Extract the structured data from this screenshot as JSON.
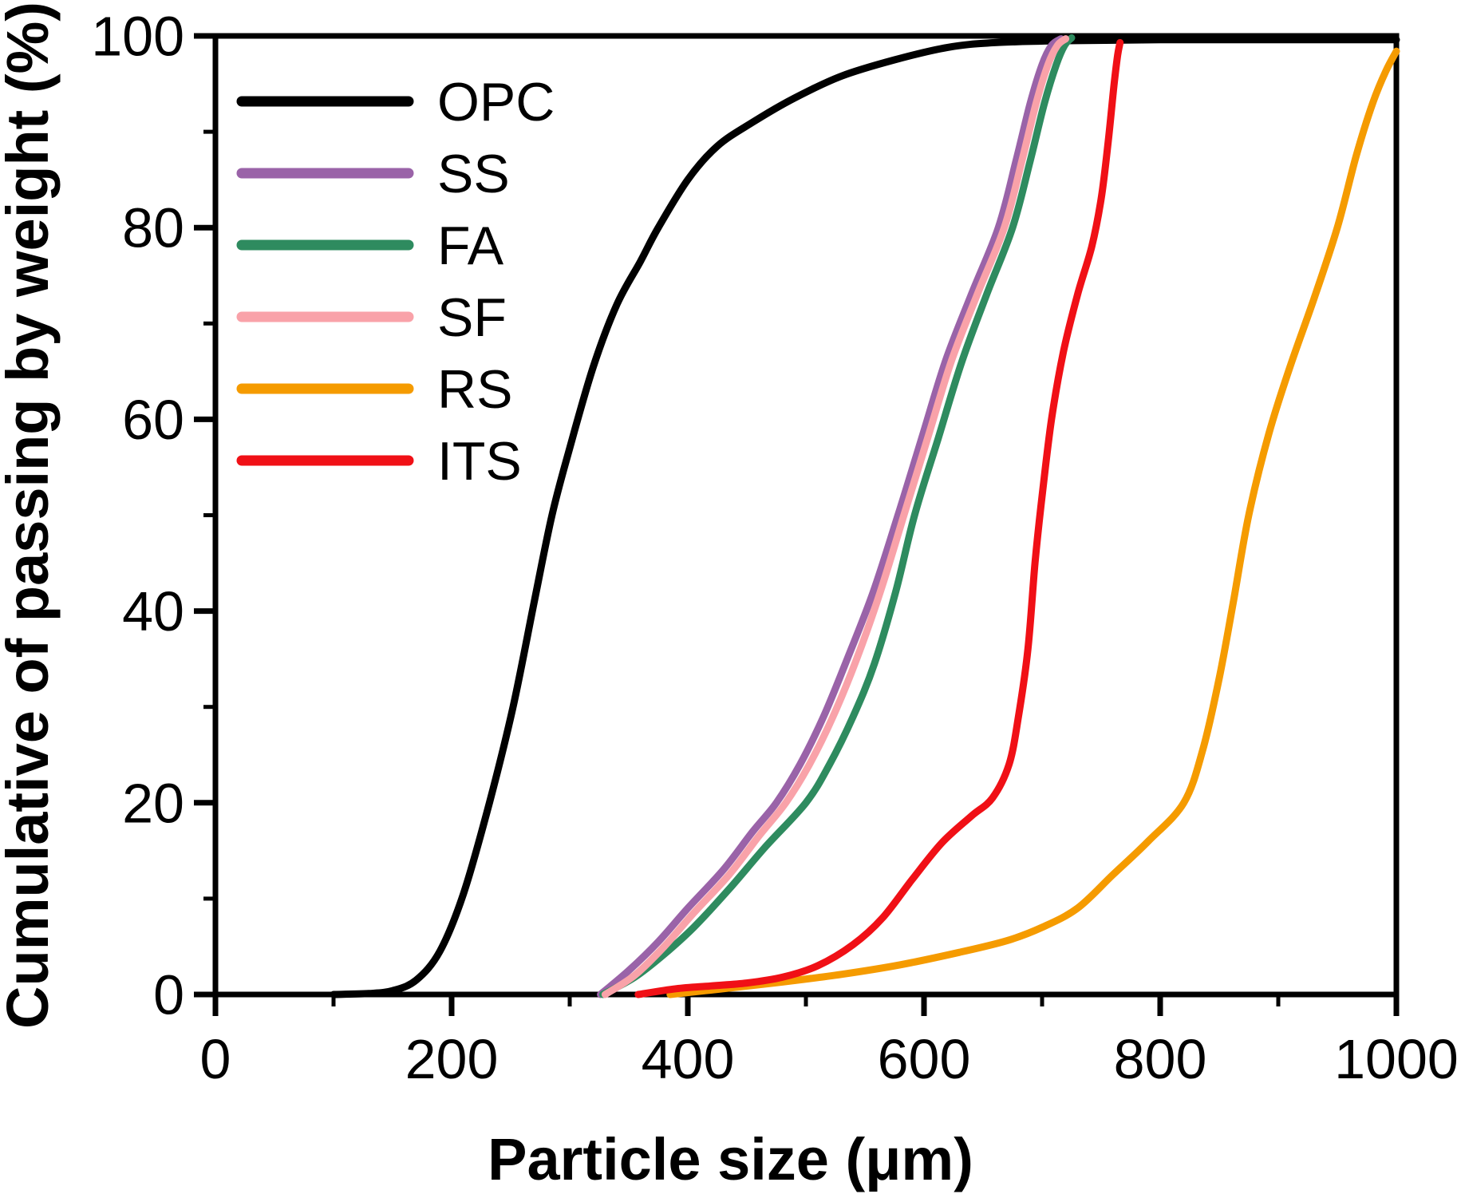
{
  "chart_data": {
    "type": "line",
    "title": "",
    "xlabel": "Particle size (μm)",
    "ylabel": "Cumulative of passing by weight (%)",
    "xlim": [
      0,
      1000
    ],
    "ylim": [
      0,
      100
    ],
    "x_major_ticks": [
      0,
      200,
      400,
      600,
      800,
      1000
    ],
    "x_minor_ticks": [
      100,
      300,
      500,
      700,
      900
    ],
    "y_major_ticks": [
      0,
      20,
      40,
      60,
      80,
      100
    ],
    "y_minor_ticks": [
      10,
      30,
      50,
      70,
      90
    ],
    "grid": false,
    "frame": true,
    "legend_position": "top-left",
    "axis_color": "#000000",
    "series": [
      {
        "name": "OPC",
        "color": "#000000",
        "points": [
          [
            100,
            0
          ],
          [
            130,
            0.1
          ],
          [
            150,
            0.4
          ],
          [
            170,
            1.5
          ],
          [
            190,
            4.5
          ],
          [
            210,
            10.5
          ],
          [
            232,
            20
          ],
          [
            252,
            30
          ],
          [
            270,
            41
          ],
          [
            285,
            50
          ],
          [
            300,
            57
          ],
          [
            320,
            65.5
          ],
          [
            340,
            72
          ],
          [
            360,
            76.5
          ],
          [
            375,
            80
          ],
          [
            400,
            85
          ],
          [
            425,
            88.5
          ],
          [
            455,
            91
          ],
          [
            490,
            93.5
          ],
          [
            530,
            95.8
          ],
          [
            575,
            97.5
          ],
          [
            620,
            98.8
          ],
          [
            660,
            99.3
          ],
          [
            720,
            99.5
          ],
          [
            800,
            99.6
          ],
          [
            900,
            99.6
          ],
          [
            1000,
            99.6
          ]
        ]
      },
      {
        "name": "SS",
        "color": "#9A63A8",
        "points": [
          [
            326,
            0
          ],
          [
            350,
            2.5
          ],
          [
            375,
            5.5
          ],
          [
            400,
            9
          ],
          [
            430,
            13
          ],
          [
            455,
            17
          ],
          [
            475,
            20
          ],
          [
            495,
            24
          ],
          [
            515,
            29
          ],
          [
            535,
            35
          ],
          [
            557,
            42
          ],
          [
            578,
            50
          ],
          [
            598,
            58
          ],
          [
            618,
            66
          ],
          [
            640,
            73
          ],
          [
            663,
            80
          ],
          [
            678,
            87
          ],
          [
            690,
            93
          ],
          [
            700,
            97
          ],
          [
            708,
            99
          ],
          [
            716,
            99.7
          ]
        ]
      },
      {
        "name": "FA",
        "color": "#2E8B5F",
        "points": [
          [
            328,
            0
          ],
          [
            355,
            1.8
          ],
          [
            380,
            4.2
          ],
          [
            405,
            7
          ],
          [
            435,
            11
          ],
          [
            465,
            15.3
          ],
          [
            500,
            20
          ],
          [
            520,
            24
          ],
          [
            540,
            29
          ],
          [
            558,
            34.5
          ],
          [
            576,
            42
          ],
          [
            592,
            50
          ],
          [
            612,
            58
          ],
          [
            632,
            66
          ],
          [
            653,
            73
          ],
          [
            675,
            80
          ],
          [
            690,
            87
          ],
          [
            702,
            93
          ],
          [
            712,
            97
          ],
          [
            719,
            99
          ],
          [
            725,
            99.8
          ]
        ]
      },
      {
        "name": "SF",
        "color": "#F9A2A9",
        "points": [
          [
            330,
            0
          ],
          [
            355,
            2
          ],
          [
            380,
            5
          ],
          [
            405,
            8.5
          ],
          [
            435,
            12.5
          ],
          [
            460,
            16.5
          ],
          [
            483,
            20
          ],
          [
            503,
            24
          ],
          [
            523,
            29
          ],
          [
            543,
            35
          ],
          [
            563,
            42
          ],
          [
            583,
            50
          ],
          [
            603,
            58
          ],
          [
            623,
            66
          ],
          [
            645,
            73
          ],
          [
            668,
            80
          ],
          [
            683,
            87
          ],
          [
            695,
            93
          ],
          [
            705,
            97
          ],
          [
            713,
            99
          ],
          [
            720,
            99.7
          ]
        ]
      },
      {
        "name": "RS",
        "color": "#F59B00",
        "points": [
          [
            385,
            0
          ],
          [
            430,
            0.6
          ],
          [
            480,
            1.3
          ],
          [
            530,
            2.1
          ],
          [
            580,
            3.1
          ],
          [
            630,
            4.4
          ],
          [
            670,
            5.6
          ],
          [
            700,
            7
          ],
          [
            730,
            9
          ],
          [
            760,
            12.5
          ],
          [
            790,
            16
          ],
          [
            820,
            20
          ],
          [
            836,
            25.5
          ],
          [
            850,
            33
          ],
          [
            862,
            41
          ],
          [
            875,
            50
          ],
          [
            892,
            58.5
          ],
          [
            910,
            65.5
          ],
          [
            930,
            72.5
          ],
          [
            950,
            80
          ],
          [
            966,
            87.5
          ],
          [
            980,
            93
          ],
          [
            991,
            96.3
          ],
          [
            1000,
            98.4
          ]
        ]
      },
      {
        "name": "ITS",
        "color": "#F01016",
        "points": [
          [
            358,
            0
          ],
          [
            390,
            0.6
          ],
          [
            420,
            0.9
          ],
          [
            450,
            1.2
          ],
          [
            480,
            1.8
          ],
          [
            510,
            3
          ],
          [
            540,
            5.2
          ],
          [
            565,
            8
          ],
          [
            590,
            12
          ],
          [
            615,
            15.8
          ],
          [
            640,
            18.6
          ],
          [
            658,
            20.5
          ],
          [
            672,
            24
          ],
          [
            680,
            29
          ],
          [
            688,
            36
          ],
          [
            694,
            45
          ],
          [
            700,
            52
          ],
          [
            708,
            60
          ],
          [
            718,
            67
          ],
          [
            730,
            73
          ],
          [
            742,
            78
          ],
          [
            750,
            83
          ],
          [
            756,
            89
          ],
          [
            761,
            95
          ],
          [
            764,
            98
          ],
          [
            766,
            99.3
          ]
        ]
      }
    ]
  }
}
